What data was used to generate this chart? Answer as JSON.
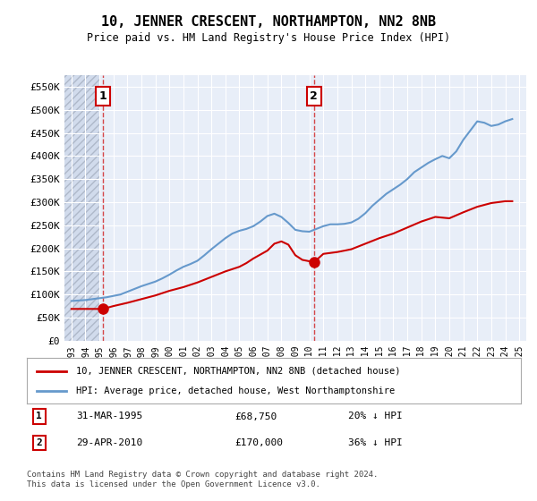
{
  "title": "10, JENNER CRESCENT, NORTHAMPTON, NN2 8NB",
  "subtitle": "Price paid vs. HM Land Registry's House Price Index (HPI)",
  "ylabel": "",
  "background_color": "#e8eef8",
  "plot_bg": "#e8eef8",
  "hatch_color": "#c8d0e0",
  "grid_color": "#ffffff",
  "red_line_color": "#cc0000",
  "blue_line_color": "#6699cc",
  "point1_year": 1995.25,
  "point1_value": 68750,
  "point2_year": 2010.33,
  "point2_value": 170000,
  "ylim_min": 0,
  "ylim_max": 575000,
  "yticks": [
    0,
    50000,
    100000,
    150000,
    200000,
    250000,
    300000,
    350000,
    400000,
    450000,
    500000,
    550000
  ],
  "ytick_labels": [
    "£0",
    "£50K",
    "£100K",
    "£150K",
    "£200K",
    "£250K",
    "£300K",
    "£350K",
    "£400K",
    "£450K",
    "£500K",
    "£550K"
  ],
  "xtick_years": [
    1993,
    1994,
    1995,
    1996,
    1997,
    1998,
    1999,
    2000,
    2001,
    2002,
    2003,
    2004,
    2005,
    2006,
    2007,
    2008,
    2009,
    2010,
    2011,
    2012,
    2013,
    2014,
    2015,
    2016,
    2017,
    2018,
    2019,
    2020,
    2021,
    2022,
    2023,
    2024,
    2025
  ],
  "legend_label_red": "10, JENNER CRESCENT, NORTHAMPTON, NN2 8NB (detached house)",
  "legend_label_blue": "HPI: Average price, detached house, West Northamptonshire",
  "note1_num": "1",
  "note1_date": "31-MAR-1995",
  "note1_price": "£68,750",
  "note1_hpi": "20% ↓ HPI",
  "note2_num": "2",
  "note2_date": "29-APR-2010",
  "note2_price": "£170,000",
  "note2_hpi": "36% ↓ HPI",
  "footer": "Contains HM Land Registry data © Crown copyright and database right 2024.\nThis data is licensed under the Open Government Licence v3.0.",
  "hpi_years": [
    1993,
    1993.5,
    1994,
    1994.5,
    1995,
    1995.5,
    1996,
    1996.5,
    1997,
    1997.5,
    1998,
    1998.5,
    1999,
    1999.5,
    2000,
    2000.5,
    2001,
    2001.5,
    2002,
    2002.5,
    2003,
    2003.5,
    2004,
    2004.5,
    2005,
    2005.5,
    2006,
    2006.5,
    2007,
    2007.5,
    2008,
    2008.5,
    2009,
    2009.5,
    2010,
    2010.5,
    2011,
    2011.5,
    2012,
    2012.5,
    2013,
    2013.5,
    2014,
    2014.5,
    2015,
    2015.5,
    2016,
    2016.5,
    2017,
    2017.5,
    2018,
    2018.5,
    2019,
    2019.5,
    2020,
    2020.5,
    2021,
    2021.5,
    2022,
    2022.5,
    2023,
    2023.5,
    2024,
    2024.5
  ],
  "hpi_values": [
    86000,
    87000,
    88000,
    90000,
    92000,
    94000,
    97000,
    100000,
    106000,
    112000,
    118000,
    123000,
    128000,
    135000,
    143000,
    152000,
    160000,
    166000,
    173000,
    185000,
    198000,
    210000,
    222000,
    232000,
    238000,
    242000,
    248000,
    258000,
    270000,
    275000,
    268000,
    255000,
    240000,
    237000,
    236000,
    242000,
    248000,
    252000,
    252000,
    253000,
    256000,
    264000,
    276000,
    292000,
    305000,
    318000,
    328000,
    338000,
    350000,
    365000,
    375000,
    385000,
    393000,
    400000,
    395000,
    410000,
    435000,
    455000,
    475000,
    472000,
    465000,
    468000,
    475000,
    480000
  ],
  "red_years": [
    1993,
    1995.25,
    1996,
    1997,
    1998,
    1999,
    2000,
    2001,
    2002,
    2003,
    2004,
    2005,
    2005.5,
    2006,
    2007,
    2007.5,
    2008,
    2008.5,
    2009,
    2009.5,
    2010.33,
    2011,
    2012,
    2013,
    2014,
    2015,
    2016,
    2017,
    2018,
    2019,
    2020,
    2021,
    2022,
    2023,
    2024,
    2024.5
  ],
  "red_values": [
    68750,
    68750,
    75000,
    82000,
    90000,
    98000,
    108000,
    116000,
    126000,
    138000,
    150000,
    160000,
    168000,
    178000,
    195000,
    210000,
    215000,
    208000,
    185000,
    175000,
    170000,
    188000,
    192000,
    198000,
    210000,
    222000,
    232000,
    245000,
    258000,
    268000,
    265000,
    278000,
    290000,
    298000,
    302000,
    302000
  ]
}
